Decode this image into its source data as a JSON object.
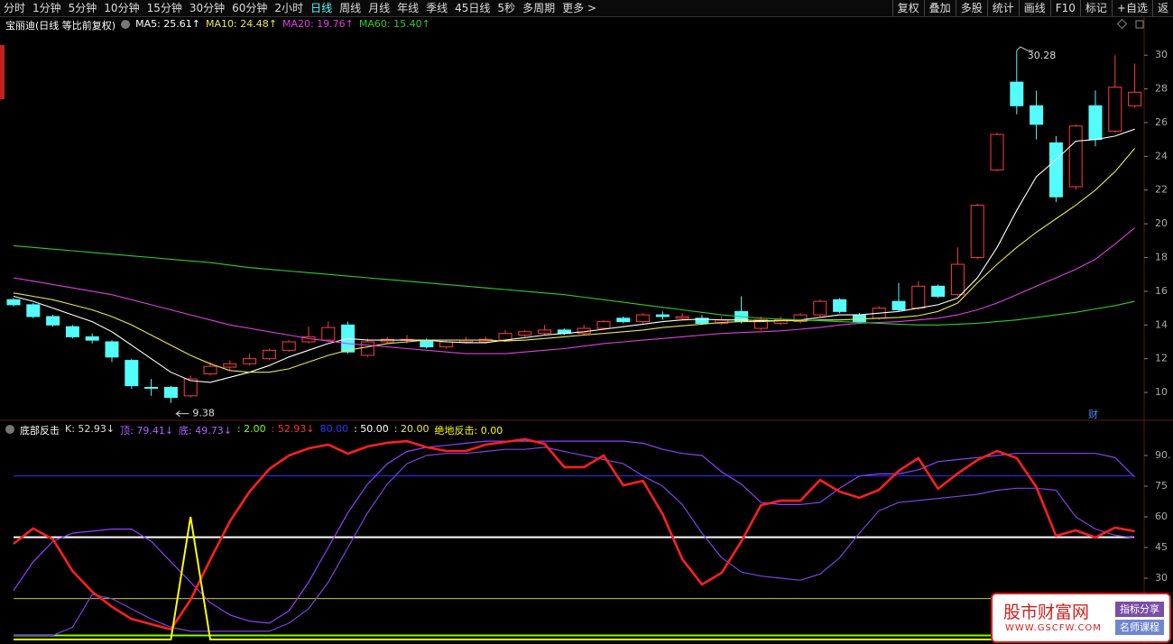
{
  "toolbar": {
    "left": [
      "分时",
      "1分钟",
      "5分钟",
      "10分钟",
      "15分钟",
      "30分钟",
      "60分钟",
      "2小时",
      "日线",
      "周线",
      "月线",
      "年线",
      "季线",
      "45日线",
      "5秒",
      "多周期",
      "更多 >"
    ],
    "active_index": 8,
    "right": [
      "复权",
      "叠加",
      "多股",
      "统计",
      "画线",
      "F10",
      "标记",
      "+自选",
      "返"
    ]
  },
  "chart_data": [
    {
      "type": "candlestick",
      "title": "宝丽迪(日线 等比前复权)",
      "open": [
        15.5,
        15.2,
        14.5,
        13.9,
        13.3,
        13.0,
        11.9,
        10.3,
        10.3,
        9.8,
        11.1,
        11.5,
        11.7,
        12.0,
        12.5,
        13.0,
        13.1,
        14.0,
        12.2,
        13.0,
        13.1,
        13.1,
        12.7,
        13.0,
        13.0,
        13.1,
        13.4,
        13.5,
        13.7,
        13.5,
        13.8,
        14.4,
        14.2,
        14.6,
        14.4,
        14.4,
        14.1,
        14.8,
        13.8,
        14.1,
        14.2,
        14.6,
        15.5,
        14.6,
        14.4,
        15.4,
        15.0,
        16.3,
        15.8,
        18.0,
        23.2,
        28.4,
        27.0,
        24.8,
        22.2,
        27.0,
        25.5,
        27.0
      ],
      "high": [
        15.6,
        15.3,
        14.6,
        14.0,
        13.5,
        13.1,
        12.0,
        10.8,
        10.4,
        11.0,
        11.8,
        11.9,
        12.3,
        12.6,
        13.1,
        13.9,
        14.2,
        14.2,
        13.2,
        13.3,
        13.4,
        13.2,
        13.1,
        13.3,
        13.3,
        13.7,
        13.7,
        14.0,
        13.8,
        14.0,
        14.3,
        14.5,
        14.7,
        14.8,
        14.7,
        14.6,
        14.5,
        15.7,
        14.5,
        14.5,
        14.7,
        15.5,
        15.6,
        14.7,
        15.1,
        16.5,
        16.6,
        16.4,
        18.6,
        21.2,
        25.4,
        30.28,
        27.9,
        25.2,
        25.9,
        27.9,
        30.0,
        29.5
      ],
      "low": [
        15.1,
        14.4,
        13.9,
        13.2,
        12.9,
        11.8,
        10.2,
        9.8,
        9.38,
        9.7,
        11.0,
        11.3,
        11.6,
        11.9,
        12.4,
        12.9,
        13.0,
        12.3,
        12.1,
        12.9,
        12.9,
        12.6,
        12.6,
        12.9,
        12.9,
        13.0,
        13.3,
        13.4,
        13.4,
        13.4,
        13.7,
        14.1,
        14.1,
        14.3,
        14.3,
        14.0,
        14.0,
        14.1,
        13.7,
        14.0,
        14.1,
        14.5,
        14.7,
        14.1,
        14.3,
        14.8,
        14.9,
        15.6,
        15.7,
        17.9,
        23.1,
        26.5,
        25.0,
        21.3,
        22.0,
        24.6,
        25.4,
        26.9
      ],
      "close": [
        15.2,
        14.5,
        14.0,
        13.3,
        13.1,
        12.1,
        10.4,
        10.25,
        9.7,
        10.8,
        11.55,
        11.7,
        12.0,
        12.5,
        13.0,
        13.3,
        13.85,
        12.4,
        13.0,
        13.15,
        13.15,
        12.7,
        13.0,
        13.1,
        13.15,
        13.5,
        13.6,
        13.7,
        13.5,
        13.8,
        14.2,
        14.2,
        14.6,
        14.5,
        14.5,
        14.1,
        14.3,
        14.2,
        14.3,
        14.3,
        14.6,
        15.4,
        14.8,
        14.2,
        15.0,
        14.9,
        16.3,
        15.7,
        17.6,
        21.1,
        25.3,
        27.0,
        25.9,
        21.6,
        25.8,
        25.0,
        28.1,
        27.8
      ],
      "up_color": "#ff3c3c",
      "down_color": "#54fcfc",
      "series": [
        {
          "name": "MA5",
          "legend": "MA5: 25.61↑",
          "color": "#ffffff",
          "values": [
            15.7,
            15.4,
            15.0,
            14.6,
            14.2,
            13.6,
            12.8,
            12.0,
            11.2,
            10.7,
            10.6,
            10.9,
            11.2,
            11.6,
            12.1,
            12.5,
            12.9,
            13.2,
            13.1,
            13.1,
            13.1,
            13.1,
            13.0,
            12.95,
            12.95,
            13.1,
            13.25,
            13.4,
            13.5,
            13.6,
            13.75,
            13.9,
            14.05,
            14.2,
            14.3,
            14.35,
            14.3,
            14.3,
            14.25,
            14.25,
            14.3,
            14.45,
            14.6,
            14.6,
            14.7,
            14.8,
            15.0,
            15.2,
            15.6,
            16.8,
            18.6,
            20.8,
            22.8,
            23.8,
            24.9,
            25.0,
            25.2,
            25.61
          ]
        },
        {
          "name": "MA10",
          "legend": "MA10: 24.48↑",
          "color": "#e8e84a",
          "values": [
            15.9,
            15.7,
            15.5,
            15.2,
            14.9,
            14.5,
            14.0,
            13.4,
            12.8,
            12.2,
            11.7,
            11.3,
            11.2,
            11.2,
            11.4,
            11.8,
            12.2,
            12.5,
            12.7,
            12.9,
            13.0,
            13.1,
            13.1,
            13.1,
            13.1,
            13.05,
            13.1,
            13.2,
            13.3,
            13.4,
            13.5,
            13.6,
            13.7,
            13.85,
            13.95,
            14.05,
            14.15,
            14.2,
            14.2,
            14.25,
            14.25,
            14.3,
            14.3,
            14.35,
            14.4,
            14.45,
            14.55,
            14.8,
            15.3,
            16.5,
            17.6,
            18.6,
            19.5,
            20.3,
            21.1,
            22.0,
            23.1,
            24.48
          ]
        },
        {
          "name": "MA20",
          "legend": "MA20: 19.76↑",
          "color": "#e040e0",
          "values": [
            16.8,
            16.6,
            16.4,
            16.2,
            16.0,
            15.8,
            15.5,
            15.2,
            14.9,
            14.6,
            14.3,
            14.0,
            13.8,
            13.6,
            13.4,
            13.2,
            13.05,
            12.9,
            12.8,
            12.7,
            12.6,
            12.5,
            12.4,
            12.3,
            12.3,
            12.3,
            12.4,
            12.5,
            12.6,
            12.75,
            12.9,
            13.0,
            13.1,
            13.2,
            13.3,
            13.4,
            13.5,
            13.55,
            13.6,
            13.65,
            13.75,
            13.85,
            14.0,
            14.1,
            14.15,
            14.2,
            14.3,
            14.4,
            14.6,
            14.9,
            15.3,
            15.8,
            16.3,
            16.8,
            17.3,
            17.9,
            18.8,
            19.76
          ]
        },
        {
          "name": "MA60",
          "legend": "MA60: 15.40↑",
          "color": "#2ecc2e",
          "values": [
            18.7,
            18.6,
            18.5,
            18.4,
            18.3,
            18.2,
            18.1,
            18.0,
            17.9,
            17.8,
            17.7,
            17.55,
            17.4,
            17.3,
            17.2,
            17.1,
            17.0,
            16.9,
            16.8,
            16.7,
            16.6,
            16.5,
            16.4,
            16.3,
            16.2,
            16.1,
            16.0,
            15.9,
            15.8,
            15.65,
            15.5,
            15.35,
            15.2,
            15.05,
            14.9,
            14.75,
            14.6,
            14.5,
            14.4,
            14.35,
            14.3,
            14.25,
            14.2,
            14.15,
            14.1,
            14.05,
            14.0,
            14.0,
            14.05,
            14.1,
            14.2,
            14.3,
            14.45,
            14.6,
            14.75,
            14.95,
            15.15,
            15.4
          ]
        }
      ],
      "annotations": [
        {
          "text": "30.28"
        },
        {
          "text": "9.38"
        }
      ],
      "marker": "财",
      "ylim": [
        8.4,
        31.4
      ],
      "yticks": [
        10,
        12,
        14,
        16,
        18,
        20,
        22,
        24,
        26,
        28,
        30
      ]
    },
    {
      "type": "line",
      "title": "底部反击",
      "legend": [
        {
          "text": "K: 52.93↓",
          "color": "#dddddd"
        },
        {
          "text": "顶: 79.41↓",
          "color": "#b060ff"
        },
        {
          "text": "底: 49.73↓",
          "color": "#b060ff"
        },
        {
          "text": ": 2.00",
          "color": "#80ff00"
        },
        {
          "text": ": 52.93↓",
          "color": "#ff3030"
        },
        {
          "text": "80.00",
          "color": "#3030ff"
        },
        {
          "text": ": 50.00",
          "color": "#ffffff"
        },
        {
          "text": ": 20.00",
          "color": "#e8e84a"
        },
        {
          "text": "绝地反击: 0.00",
          "color": "#ffff00"
        }
      ],
      "levels": [
        {
          "value": 2,
          "color": "#80ff00"
        },
        {
          "value": 80,
          "color": "#3030ff"
        },
        {
          "value": 50,
          "color": "#ffffff"
        },
        {
          "value": 20,
          "color": "#cccc00"
        }
      ],
      "series": [
        {
          "name": "顶",
          "color": "#9040ff",
          "values": [
            24,
            38,
            48,
            52,
            53,
            54,
            54,
            48,
            38,
            28,
            18,
            12,
            9,
            8,
            14,
            28,
            45,
            62,
            76,
            86,
            92,
            94,
            95,
            96,
            97,
            97,
            97,
            97,
            97,
            97,
            97,
            97,
            96,
            93,
            91,
            90,
            82,
            76,
            67,
            66,
            66,
            67,
            74,
            80,
            81,
            81,
            83,
            87,
            88,
            89,
            90,
            91,
            91,
            91,
            91,
            91,
            89,
            79.41
          ]
        },
        {
          "name": "底",
          "color": "#8040e0",
          "values": [
            2,
            2,
            2,
            6,
            22,
            20,
            15,
            10,
            6,
            4,
            4,
            4,
            4,
            4,
            8,
            15,
            28,
            45,
            62,
            76,
            86,
            90,
            91,
            91,
            92,
            93,
            93,
            94,
            92,
            90,
            88,
            86,
            80,
            75,
            66,
            52,
            40,
            33,
            31,
            30,
            29,
            32,
            40,
            52,
            63,
            67,
            68,
            69,
            70,
            71,
            73,
            74,
            74,
            73,
            60,
            54,
            51,
            49.73
          ]
        },
        {
          "name": "K",
          "color": "#ff2020",
          "values": [
            46.8,
            54.3,
            49,
            33.5,
            23.4,
            16,
            10,
            7.5,
            4.9,
            19.4,
            39,
            57.8,
            72.3,
            83.4,
            90,
            93.5,
            95.3,
            90.9,
            94.4,
            96.2,
            97,
            94,
            92.2,
            92.2,
            95.3,
            96.6,
            98,
            95.7,
            84.3,
            84.3,
            90,
            75.4,
            77.6,
            61.3,
            39.3,
            26.9,
            32.6,
            48,
            65.7,
            67.9,
            67.9,
            78,
            72.3,
            69.3,
            73.2,
            82.5,
            88.7,
            73.7,
            81.2,
            87.8,
            92.2,
            88.7,
            74.5,
            50.7,
            53.4,
            49.9,
            54.7,
            52.93
          ]
        },
        {
          "name": "绝地反击",
          "color": "#ffff00",
          "values": [
            0,
            0,
            0,
            0,
            0,
            0,
            0,
            0,
            0,
            60,
            0,
            0,
            0,
            0,
            0,
            0,
            0,
            0,
            0,
            0,
            0,
            0,
            0,
            0,
            0,
            0,
            0,
            0,
            0,
            0,
            0,
            0,
            0,
            0,
            0,
            0,
            0,
            0,
            0,
            0,
            0,
            0,
            0,
            0,
            0,
            0,
            0,
            0,
            0,
            0,
            0,
            0,
            0,
            0,
            0,
            0,
            0,
            0
          ]
        }
      ],
      "ylim": [
        0,
        105
      ],
      "yticks": [
        30,
        45,
        60,
        75,
        {
          "value": 90,
          "label": "90."
        }
      ]
    }
  ],
  "watermark": {
    "title": "股市财富网",
    "url": "WWW.GSCFW.COM",
    "tags": [
      "指标分享",
      "名师课程"
    ]
  }
}
